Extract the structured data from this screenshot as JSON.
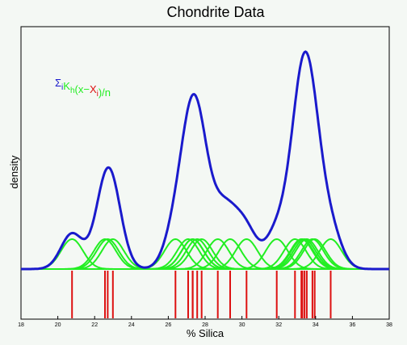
{
  "chart_data": {
    "type": "line",
    "title": "Chondrite Data",
    "xlabel": "% Silica",
    "ylabel": "density",
    "xlim": [
      18,
      38
    ],
    "x_ticks": [
      "18",
      "20",
      "22",
      "24",
      "26",
      "28",
      "30",
      "32",
      "34",
      "36",
      "38"
    ],
    "x_tick_values": [
      18,
      20,
      22,
      24,
      26,
      28,
      30,
      32,
      34,
      36,
      38
    ],
    "grid": false,
    "legend_position": "top-left",
    "annotation": {
      "parts": [
        {
          "text": "Σ",
          "color": "blue"
        },
        {
          "text": "i",
          "color": "blue",
          "sub": true
        },
        {
          "text": "K",
          "color": "green"
        },
        {
          "text": "h",
          "color": "green",
          "sub": true
        },
        {
          "text": "(x−",
          "color": "green"
        },
        {
          "text": "X",
          "color": "red"
        },
        {
          "text": "i",
          "color": "red",
          "sub": true
        },
        {
          "text": ")/n",
          "color": "green"
        }
      ]
    },
    "bandwidth": 0.6,
    "observations": [
      20.77,
      22.56,
      22.71,
      22.99,
      26.39,
      27.08,
      27.32,
      27.33,
      27.57,
      27.81,
      28.69,
      29.36,
      30.25,
      31.89,
      32.88,
      33.23,
      33.28,
      33.4,
      33.52,
      33.83,
      33.95,
      34.82
    ],
    "series": [
      {
        "name": "",
        "kind": "kde",
        "color": "#1a1acc"
      },
      {
        "name": "",
        "kind": "kernels",
        "color": "#22ee22"
      },
      {
        "name": "",
        "kind": "rug",
        "color": "#dd1111"
      }
    ]
  },
  "colors": {
    "blue": "#1a1acc",
    "green": "#22ee22",
    "red": "#dd1111",
    "frame": "#000000"
  }
}
